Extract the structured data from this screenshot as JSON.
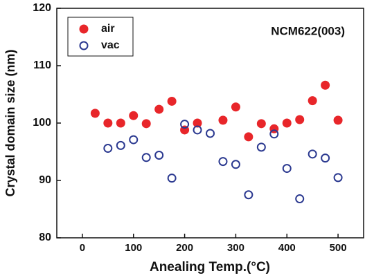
{
  "chart_data": {
    "type": "scatter",
    "annotation": "NCM622(003)",
    "x_label": "Anealing Temp.(°C)",
    "y_label": "Crystal domain size (nm)",
    "x": [
      25,
      50,
      75,
      100,
      125,
      150,
      175,
      200,
      225,
      250,
      275,
      300,
      325,
      350,
      375,
      400,
      425,
      450,
      475,
      500
    ],
    "series": [
      {
        "name": "air",
        "color": "#e8262a",
        "filled": true,
        "values": [
          101.7,
          100,
          100,
          101.3,
          99.9,
          102.4,
          103.8,
          98.8,
          100,
          null,
          100.5,
          102.8,
          97.6,
          99.9,
          99.0,
          100,
          100.6,
          103.9,
          106.6,
          100.5
        ]
      },
      {
        "name": "vac",
        "color": "#2b3990",
        "filled": false,
        "values": [
          null,
          95.6,
          96.1,
          97.1,
          94.0,
          94.4,
          90.4,
          99.8,
          98.8,
          98.2,
          93.3,
          92.8,
          87.5,
          95.8,
          98.1,
          92.1,
          86.8,
          94.6,
          93.9,
          90.5
        ]
      }
    ],
    "xlim": [
      -50,
      550
    ],
    "xticks": [
      0,
      100,
      200,
      300,
      400,
      500
    ],
    "ylim": [
      80,
      120
    ],
    "yticks": [
      80,
      90,
      100,
      110,
      120
    ],
    "legend": "upper left"
  }
}
